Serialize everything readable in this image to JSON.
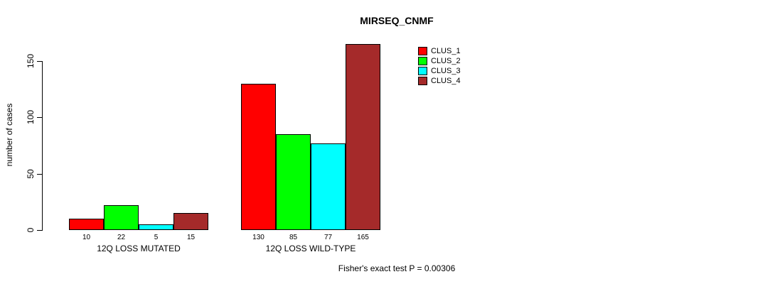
{
  "page": {
    "background_color": "#FFFFFF"
  },
  "chart_data": {
    "type": "bar",
    "title": "MIRSEQ_CNMF",
    "ylabel": "number of cases",
    "xlabel": "",
    "footnote": "Fisher's exact test P = 0.00306",
    "categories": [
      "12Q LOSS MUTATED",
      "12Q LOSS WILD-TYPE"
    ],
    "series": [
      {
        "name": "CLUS_1",
        "color": "#FF0000",
        "values": [
          10,
          130
        ]
      },
      {
        "name": "CLUS_2",
        "color": "#00FF00",
        "values": [
          22,
          85
        ]
      },
      {
        "name": "CLUS_3",
        "color": "#00FFFF",
        "values": [
          5,
          77
        ]
      },
      {
        "name": "CLUS_4",
        "color": "#A52A2A",
        "values": [
          15,
          165
        ]
      }
    ],
    "bar_value_labels": [
      [
        "10",
        "22",
        "5",
        "15"
      ],
      [
        "130",
        "85",
        "77",
        "165"
      ]
    ],
    "yticks": [
      0,
      50,
      100,
      150
    ],
    "ylim": [
      0,
      165
    ],
    "grid": false,
    "legend_position": "top-right",
    "legend_entries": [
      "CLUS_1",
      "CLUS_2",
      "CLUS_3",
      "CLUS_4"
    ],
    "bar_border_color": "#000000",
    "axis_color": "#000000",
    "text_color": "#000000"
  }
}
